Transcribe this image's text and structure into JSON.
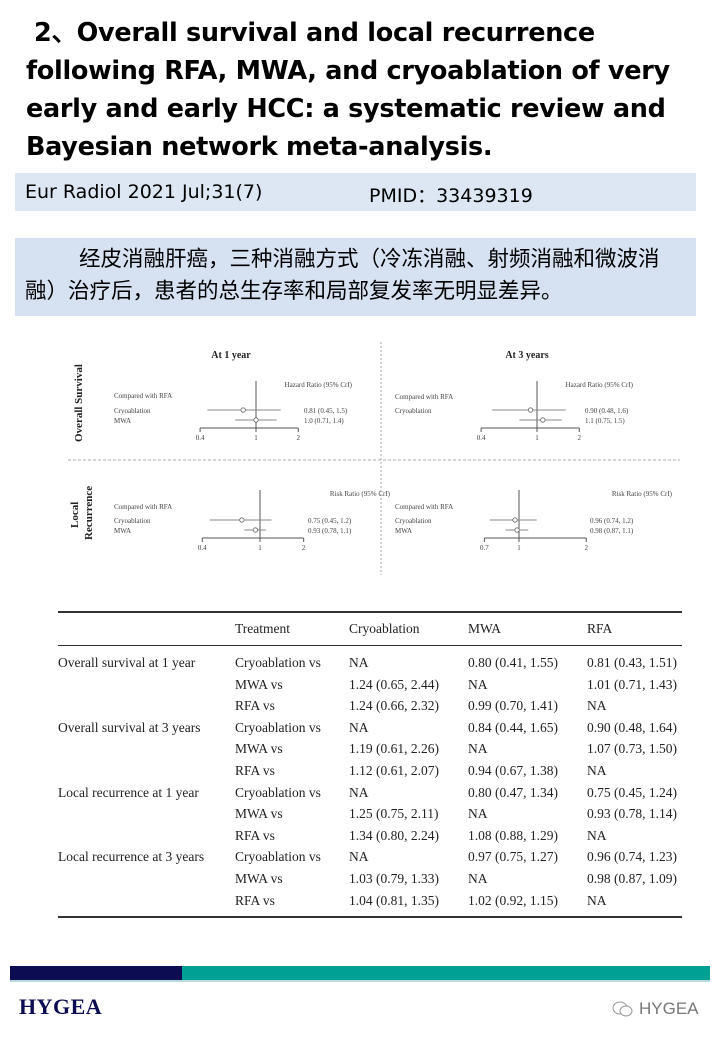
{
  "header": {
    "number": "2、",
    "title": "Overall survival and local recurrence following RFA, MWA, and cryoablation of very early and early HCC: a systematic review and Bayesian network meta-analysis.",
    "journal": "Eur Radiol 2021 Jul;31(7)",
    "pmid": "PMID：33439319"
  },
  "summary": "经皮消融肝癌，三种消融方式（冷冻消融、射频消融和微波消融）治疗后，患者的总生存率和局部复发率无明显差异。",
  "chart_data": {
    "type": "forest",
    "row_labels": [
      "Overall Survival",
      "Local Recurrence"
    ],
    "panels": [
      {
        "row": "Overall Survival",
        "title": "At 1 year",
        "measure": "Hazard Ratio (95% CrI)",
        "reference": "Compared with RFA",
        "xscale": "log",
        "ticks": [
          0.4,
          1,
          2
        ],
        "items": [
          {
            "label": "Cryoablation",
            "est": 0.81,
            "lo": 0.45,
            "hi": 1.5,
            "text": "0.81 (0.45, 1.5)"
          },
          {
            "label": "MWA",
            "est": 1.0,
            "lo": 0.71,
            "hi": 1.4,
            "text": "1.0 (0.71, 1.4)"
          }
        ]
      },
      {
        "row": "Overall Survival",
        "title": "At 3 years",
        "measure": "Hazard Ratio (95% CrI)",
        "reference": "Compared with RFA",
        "xscale": "log",
        "ticks": [
          0.4,
          1,
          2
        ],
        "items": [
          {
            "label": "Cryoablation",
            "est": 0.9,
            "lo": 0.48,
            "hi": 1.6,
            "text": "0.90 (0.48, 1.6)"
          },
          {
            "label": "",
            "est": 1.1,
            "lo": 0.75,
            "hi": 1.5,
            "text": "1.1 (0.75, 1.5)"
          }
        ]
      },
      {
        "row": "Local Recurrence",
        "title": "",
        "measure": "Risk Ratio (95% CrI)",
        "reference": "Compared with RFA",
        "xscale": "log",
        "ticks": [
          0.4,
          1,
          2
        ],
        "items": [
          {
            "label": "Cryoablation",
            "est": 0.75,
            "lo": 0.45,
            "hi": 1.2,
            "text": "0.75 (0.45, 1.2)"
          },
          {
            "label": "MWA",
            "est": 0.93,
            "lo": 0.78,
            "hi": 1.1,
            "text": "0.93 (0.78, 1.1)"
          }
        ]
      },
      {
        "row": "Local Recurrence",
        "title": "",
        "measure": "Risk Ratio (95% CrI)",
        "reference": "Compared with RFA",
        "xscale": "log",
        "ticks": [
          0.7,
          1,
          2
        ],
        "items": [
          {
            "label": "Cryoablation",
            "est": 0.96,
            "lo": 0.74,
            "hi": 1.2,
            "text": "0.96 (0.74, 1.2)"
          },
          {
            "label": "MWA",
            "est": 0.98,
            "lo": 0.87,
            "hi": 1.1,
            "text": "0.98 (0.87, 1.1)"
          }
        ]
      }
    ]
  },
  "table": {
    "columns": [
      "",
      "Treatment",
      "Cryoablation",
      "MWA",
      "RFA"
    ],
    "rows": [
      [
        "Overall survival at 1 year",
        "Cryoablation vs",
        "NA",
        "0.80 (0.41, 1.55)",
        "0.81 (0.43, 1.51)"
      ],
      [
        "",
        "MWA vs",
        "1.24 (0.65, 2.44)",
        "NA",
        "1.01 (0.71, 1.43)"
      ],
      [
        "",
        "RFA vs",
        "1.24 (0.66, 2.32)",
        "0.99 (0.70, 1.41)",
        "NA"
      ],
      [
        "Overall survival at 3 years",
        "Cryoablation vs",
        "NA",
        "0.84 (0.44, 1.65)",
        "0.90 (0.48, 1.64)"
      ],
      [
        "",
        "MWA vs",
        "1.19 (0.61, 2.26)",
        "NA",
        "1.07 (0.73, 1.50)"
      ],
      [
        "",
        "RFA vs",
        "1.12 (0.61, 2.07)",
        "0.94 (0.67, 1.38)",
        "NA"
      ],
      [
        "Local recurrence at 1 year",
        "Cryoablation vs",
        "NA",
        "0.80 (0.47, 1.34)",
        "0.75 (0.45, 1.24)"
      ],
      [
        "",
        "MWA vs",
        "1.25 (0.75, 2.11)",
        "NA",
        "0.93 (0.78, 1.14)"
      ],
      [
        "",
        "RFA vs",
        "1.34 (0.80, 2.24)",
        "1.08 (0.88, 1.29)",
        "NA"
      ],
      [
        "Local recurrence at 3 years",
        "Cryoablation vs",
        "NA",
        "0.97 (0.75, 1.27)",
        "0.96 (0.74, 1.23)"
      ],
      [
        "",
        "MWA vs",
        "1.03 (0.79, 1.33)",
        "NA",
        "0.98 (0.87, 1.09)"
      ],
      [
        "",
        "RFA vs",
        "1.04 (0.81, 1.35)",
        "1.02 (0.92, 1.15)",
        "NA"
      ]
    ]
  },
  "footer": {
    "logo": "HYGEA",
    "watermark": "HYGEA",
    "colors": {
      "navy": "#0b0c52",
      "teal": "#00a195"
    }
  }
}
